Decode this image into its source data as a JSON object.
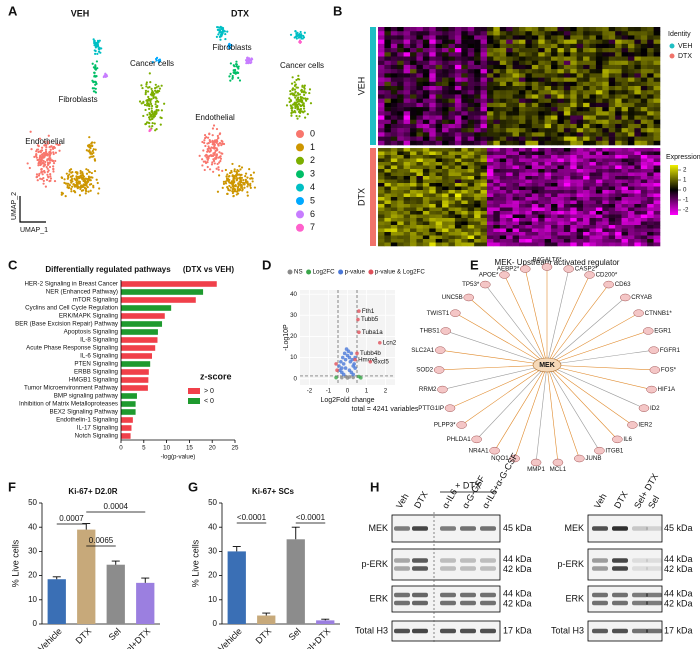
{
  "panel_letters": [
    "A",
    "B",
    "C",
    "D",
    "E",
    "F",
    "G",
    "H"
  ],
  "umap": {
    "groups": [
      "VEH",
      "DTX"
    ],
    "cell_labels": [
      "Fibroblasts",
      "Cancer cells",
      "Endothelial"
    ],
    "x_label": "UMAP_1",
    "y_label": "UMAP_2",
    "clusters": [
      {
        "name": "0",
        "color": "#f8766d"
      },
      {
        "name": "1",
        "color": "#cd9600"
      },
      {
        "name": "2",
        "color": "#7cae00"
      },
      {
        "name": "3",
        "color": "#00be67"
      },
      {
        "name": "4",
        "color": "#00bfc4"
      },
      {
        "name": "5",
        "color": "#00a9ff"
      },
      {
        "name": "6",
        "color": "#c77cff"
      },
      {
        "name": "7",
        "color": "#ff61cc"
      }
    ]
  },
  "heatmap": {
    "groups": [
      {
        "name": "VEH",
        "color": "#1fbfc4"
      },
      {
        "name": "DTX",
        "color": "#f0736a"
      }
    ],
    "identity_title": "Identity",
    "expression_title": "Expression",
    "expression_ticks": [
      2,
      1,
      0,
      -1,
      -2
    ],
    "expression_lim": [
      -2.5,
      2.5
    ]
  },
  "chart_data": [
    {
      "type": "bar",
      "orientation": "horizontal",
      "title": "Differentially regulated pathways",
      "subtitle": "(DTX vs VEH)",
      "categories": [
        "HER-2 Signaling in Breast Cancer",
        "NER (Enhanced Pathway)",
        "mTOR Signaling",
        "Cyclins and Cell Cycle Regulation",
        "ERK/MAPK Signaling",
        "BER (Base Excision Repair) Pathway",
        "Apoptosis Signaling",
        "IL-8 Signaling",
        "Acute Phase Response Signaling",
        "IL-6 Signaling",
        "PTEN Signaling",
        "ERBB Signaling",
        "HMGB1 Signaling",
        "Tumor Microenvironment Pathway",
        "BMP signaling pathway",
        "Inhibition of Matrix Metalloproteases",
        "BEX2 Signaling Pathway",
        "Endothelin-1 Signaling",
        "IL-17 Signaling",
        "Notch Signaling"
      ],
      "series": [
        {
          "name": "> 0",
          "color": "#f0404a",
          "values": [
            21,
            null,
            16.4,
            null,
            9.6,
            null,
            null,
            8,
            7.5,
            6.8,
            null,
            6.1,
            6,
            5.9,
            null,
            null,
            null,
            2.6,
            2.3,
            2.1
          ]
        },
        {
          "name": "< 0",
          "color": "#1e9a2e",
          "values": [
            null,
            18,
            null,
            11,
            null,
            9,
            8.1,
            null,
            null,
            null,
            6.4,
            null,
            null,
            null,
            3.5,
            3.2,
            3.2,
            null,
            null,
            null
          ]
        }
      ],
      "xlim": [
        0,
        25
      ],
      "xticks": [
        0,
        5,
        10,
        15,
        20,
        25
      ],
      "x_label": "-log(p-value)",
      "legend_title": "z-score"
    },
    {
      "type": "scatter",
      "x_label": "Log2Fold change",
      "y_label": "-Log10P",
      "caption": "total = 4241 variables",
      "xlim": [
        -2.5,
        2.5
      ],
      "xticks": [
        -2,
        -1,
        0,
        1,
        2
      ],
      "ylim": [
        -3,
        42
      ],
      "yticks": [
        0,
        10,
        20,
        30,
        40
      ],
      "x_cutoffs": [
        -0.5,
        0.5
      ],
      "y_cutoff": 1.3,
      "series": [
        {
          "name": "NS",
          "color": "#8a8a8a",
          "x": [
            -0.3,
            -0.1,
            0.1,
            0.3,
            0.0
          ],
          "values": [
            0.5,
            1,
            0.8,
            0.6,
            0.3
          ]
        },
        {
          "name": "Log2FC",
          "color": "#3aa64a",
          "x": [
            -0.6,
            0.6,
            0.7
          ],
          "values": [
            0.5,
            1,
            0.4
          ]
        },
        {
          "name": "p-value",
          "color": "#4a78d8",
          "x": [
            -0.45,
            -0.4,
            -0.35,
            -0.3,
            -0.25,
            -0.2,
            -0.15,
            -0.1,
            -0.05,
            0,
            0.05,
            0.1,
            0.15,
            0.2,
            0.25,
            0.3,
            0.35,
            0.4,
            -0.3,
            -0.2,
            0.1,
            0.2,
            0.3,
            -0.1,
            0.4
          ],
          "values": [
            6,
            4,
            8,
            5,
            10,
            7,
            12,
            9,
            14,
            11,
            13,
            10,
            8,
            12,
            9,
            6,
            7,
            5,
            3,
            2,
            4,
            3,
            2,
            5,
            10
          ]
        },
        {
          "name": "p-value & Log2FC",
          "color": "#e0505a",
          "x": [
            0.6,
            0.55,
            0.6,
            1.7,
            0.5,
            0.4,
            1.2,
            -0.6,
            -0.55
          ],
          "values": [
            32,
            28,
            22,
            17,
            12,
            9,
            8,
            7,
            4
          ],
          "point_labels": [
            "Fth1",
            "Tubb5",
            "Tuba1a",
            "Lcn2",
            "Tubb4b",
            "Hmox1",
            "Cxcl5",
            null,
            null
          ]
        }
      ]
    },
    {
      "type": "bar",
      "title": "Ki-67+ D2.0R",
      "categories": [
        "Vehicle",
        "DTX",
        "Sel",
        "Sel+DTX"
      ],
      "values": [
        18.5,
        39,
        24.5,
        17
      ],
      "errors": [
        1,
        2.5,
        1.5,
        2
      ],
      "colors": [
        "#3a6fb5",
        "#c7a97a",
        "#8c8c8c",
        "#9b7fe0"
      ],
      "y_label": "% Live cells",
      "ylim": [
        0,
        50
      ],
      "yticks": [
        0,
        10,
        20,
        30,
        40,
        50
      ],
      "comparisons": [
        {
          "pair": [
            "DTX",
            "Sel+DTX"
          ],
          "label": "0.0004"
        },
        {
          "pair": [
            "Vehicle",
            "DTX"
          ],
          "label": "0.0007"
        },
        {
          "pair": [
            "DTX",
            "Sel"
          ],
          "label": "0.0065"
        }
      ]
    },
    {
      "type": "bar",
      "title": "Ki-67+ SCs",
      "categories": [
        "Vehicle",
        "DTX",
        "Sel",
        "Sel+DTX"
      ],
      "values": [
        30,
        3.5,
        35,
        1.5
      ],
      "errors": [
        2,
        1,
        5,
        0.5
      ],
      "colors": [
        "#3a6fb5",
        "#c7a97a",
        "#8c8c8c",
        "#9b7fe0"
      ],
      "y_label": "% Live cells",
      "ylim": [
        0,
        50
      ],
      "yticks": [
        0,
        10,
        20,
        30,
        40,
        50
      ],
      "comparisons": [
        {
          "pair": [
            "Vehicle",
            "DTX"
          ],
          "label": "<0.0001"
        },
        {
          "pair": [
            "Sel",
            "Sel+DTX"
          ],
          "label": "<0.0001"
        }
      ]
    }
  ],
  "network": {
    "title": "MEK- Upstream activated regulator",
    "center": "MEK",
    "nodes": [
      "B4GALT6*",
      "CASP2*",
      "CD200*",
      "CD63",
      "CRYAB",
      "CTNNB1*",
      "EGR1",
      "FGFR1",
      "FOS*",
      "HIF1A",
      "ID2",
      "IER2",
      "IL6",
      "ITGB1",
      "JUNB",
      "MCL1",
      "MMP1",
      "NQO1",
      "NR4A1",
      "PHLDA1",
      "PLPP3*",
      "PTTG1IP",
      "RRM2",
      "SOD2",
      "SLC2A1",
      "THBS1",
      "TWIST1",
      "UNC5B",
      "TP53*",
      "APOE*",
      "AEBP2*"
    ]
  },
  "western": {
    "treatment": "+ DTX",
    "left_lanes": [
      "Veh",
      "DTX",
      "α-IL6",
      "α-G-CSF",
      "α-IL6+α-G-CSF"
    ],
    "right_lanes": [
      "Veh",
      "DTX",
      "Sel+ DTX",
      "Sel"
    ],
    "rows": [
      {
        "name": "MEK",
        "sizes": [
          "45 kDa"
        ]
      },
      {
        "name": "p-ERK",
        "sizes": [
          "44 kDa",
          "42 kDa"
        ]
      },
      {
        "name": "ERK",
        "sizes": [
          "44 kDa",
          "42 kDa"
        ]
      },
      {
        "name": "Total H3",
        "sizes": [
          "17 kDa"
        ]
      }
    ]
  }
}
